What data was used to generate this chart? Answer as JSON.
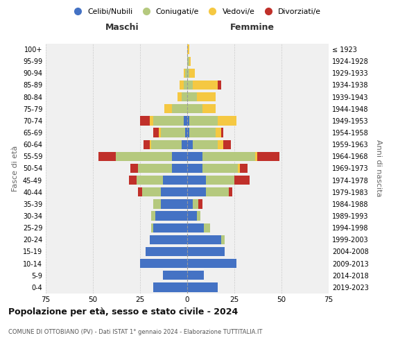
{
  "age_groups": [
    "0-4",
    "5-9",
    "10-14",
    "15-19",
    "20-24",
    "25-29",
    "30-34",
    "35-39",
    "40-44",
    "45-49",
    "50-54",
    "55-59",
    "60-64",
    "65-69",
    "70-74",
    "75-79",
    "80-84",
    "85-89",
    "90-94",
    "95-99",
    "100+"
  ],
  "birth_years": [
    "2019-2023",
    "2014-2018",
    "2009-2013",
    "2004-2008",
    "1999-2003",
    "1994-1998",
    "1989-1993",
    "1984-1988",
    "1979-1983",
    "1974-1978",
    "1969-1973",
    "1964-1968",
    "1959-1963",
    "1954-1958",
    "1949-1953",
    "1944-1948",
    "1939-1943",
    "1934-1938",
    "1929-1933",
    "1924-1928",
    "≤ 1923"
  ],
  "colors": {
    "celibi": "#4472C4",
    "coniugati": "#b5c97e",
    "vedovi": "#f5c842",
    "divorziati": "#c0302a",
    "grid": "#cccccc",
    "bg": "#ffffff",
    "plot_bg": "#f0f0f0"
  },
  "males": {
    "celibi": [
      18,
      13,
      25,
      22,
      20,
      18,
      17,
      14,
      14,
      13,
      8,
      8,
      3,
      1,
      2,
      0,
      0,
      0,
      0,
      0,
      0
    ],
    "coniugati": [
      0,
      0,
      0,
      0,
      0,
      1,
      2,
      4,
      10,
      14,
      18,
      30,
      16,
      13,
      16,
      8,
      3,
      2,
      1,
      0,
      0
    ],
    "vedovi": [
      0,
      0,
      0,
      0,
      0,
      0,
      0,
      0,
      0,
      0,
      0,
      0,
      1,
      1,
      2,
      4,
      2,
      2,
      1,
      0,
      0
    ],
    "divorziati": [
      0,
      0,
      0,
      0,
      0,
      0,
      0,
      0,
      2,
      4,
      4,
      9,
      3,
      3,
      5,
      0,
      0,
      0,
      0,
      0,
      0
    ]
  },
  "females": {
    "celibi": [
      16,
      9,
      26,
      20,
      18,
      9,
      5,
      3,
      10,
      10,
      8,
      8,
      3,
      1,
      1,
      0,
      0,
      0,
      0,
      0,
      0
    ],
    "coniugati": [
      0,
      0,
      0,
      0,
      2,
      3,
      2,
      3,
      12,
      15,
      19,
      28,
      13,
      14,
      15,
      8,
      5,
      3,
      1,
      1,
      0
    ],
    "vedovi": [
      0,
      0,
      0,
      0,
      0,
      0,
      0,
      0,
      0,
      0,
      1,
      1,
      3,
      3,
      10,
      7,
      10,
      13,
      3,
      1,
      1
    ],
    "divorziati": [
      0,
      0,
      0,
      0,
      0,
      0,
      0,
      2,
      2,
      8,
      4,
      12,
      4,
      1,
      0,
      0,
      0,
      2,
      0,
      0,
      0
    ]
  },
  "xlim": 75,
  "title": "Popolazione per età, sesso e stato civile - 2024",
  "subtitle": "COMUNE DI OTTOBIANO (PV) - Dati ISTAT 1° gennaio 2024 - Elaborazione TUTTITALIA.IT",
  "xlabel_left": "Maschi",
  "xlabel_right": "Femmine",
  "ylabel_left": "Fasce di età",
  "ylabel_right": "Anni di nascita"
}
